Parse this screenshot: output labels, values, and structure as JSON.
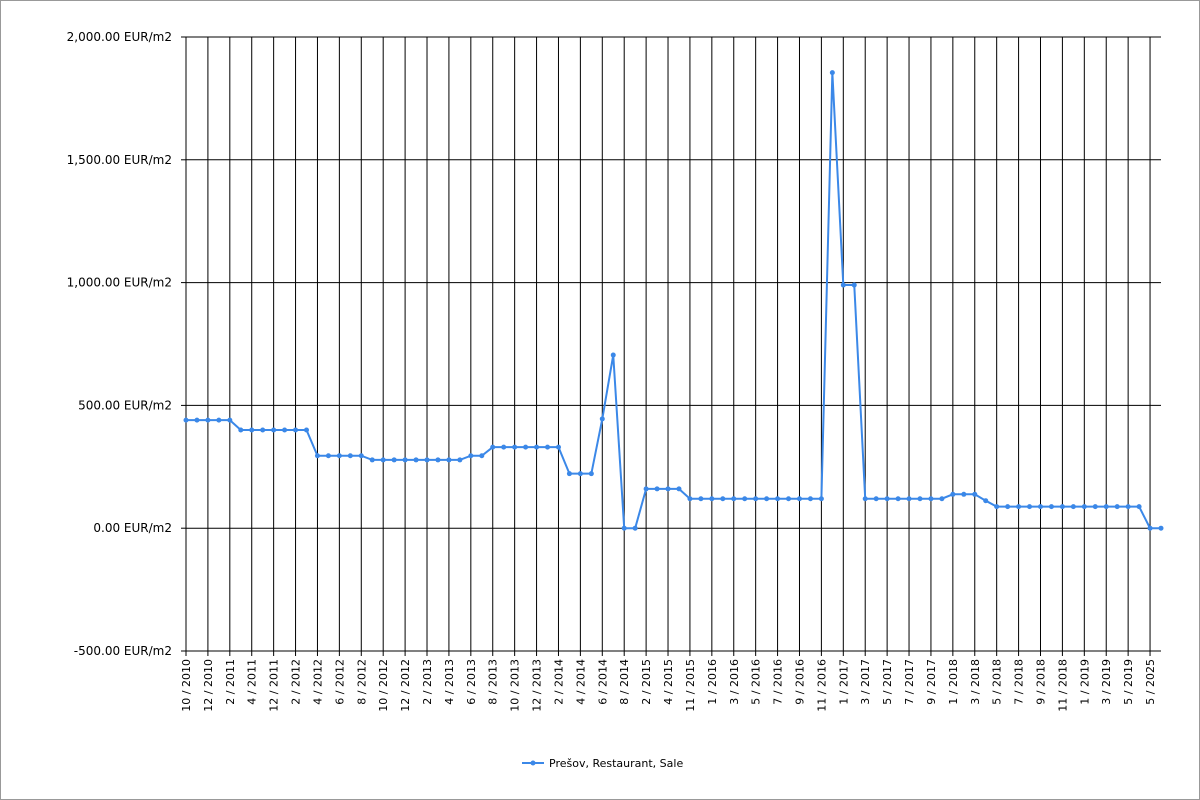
{
  "chart_data": {
    "type": "line",
    "categories": [
      "10 / 2010",
      null,
      "12 / 2010",
      null,
      "2 / 2011",
      null,
      "4 / 2011",
      null,
      "12 / 2011",
      null,
      "2 / 2012",
      null,
      "4 / 2012",
      null,
      "6 / 2012",
      null,
      "8 / 2012",
      null,
      "10 / 2012",
      null,
      "12 / 2012",
      null,
      "2 / 2013",
      null,
      "4 / 2013",
      null,
      "6 / 2013",
      null,
      "8 / 2013",
      null,
      "10 / 2013",
      null,
      "12 / 2013",
      null,
      "2 / 2014",
      null,
      "4 / 2014",
      null,
      "6 / 2014",
      null,
      "8 / 2014",
      null,
      "2 / 2015",
      null,
      "4 / 2015",
      null,
      "11 / 2015",
      null,
      "1 / 2016",
      null,
      "3 / 2016",
      null,
      "5 / 2016",
      null,
      "7 / 2016",
      null,
      "9 / 2016",
      null,
      "11 / 2016",
      null,
      "1 / 2017",
      null,
      "3 / 2017",
      null,
      "5 / 2017",
      null,
      "7 / 2017",
      null,
      "9 / 2017",
      null,
      "1 / 2018",
      null,
      "3 / 2018",
      null,
      "5 / 2018",
      null,
      "7 / 2018",
      null,
      "9 / 2018",
      null,
      "11 / 2018",
      null,
      "1 / 2019",
      null,
      "3 / 2019",
      null,
      "5 / 2019",
      null,
      "5 / 2025",
      null
    ],
    "series": [
      {
        "name": "Prešov, Restaurant, Sale",
        "color": "#3b88e8",
        "values": [
          440,
          440,
          440,
          440,
          440,
          400,
          400,
          400,
          400,
          400,
          400,
          400,
          295,
          295,
          295,
          295,
          295,
          278,
          278,
          278,
          278,
          278,
          278,
          278,
          278,
          278,
          295,
          295,
          330,
          330,
          330,
          330,
          330,
          330,
          330,
          222,
          222,
          222,
          445,
          705,
          0,
          0,
          160,
          160,
          160,
          160,
          120,
          120,
          120,
          120,
          120,
          120,
          120,
          120,
          120,
          120,
          120,
          120,
          120,
          1855,
          990,
          990,
          120,
          120,
          120,
          120,
          120,
          120,
          120,
          120,
          138,
          138,
          138,
          112,
          88,
          88,
          88,
          88,
          88,
          88,
          88,
          88,
          88,
          88,
          88,
          88,
          88,
          88,
          0,
          0
        ]
      }
    ],
    "ylim": [
      -500,
      2000
    ],
    "yticks": [
      {
        "value": -500,
        "label": "-500.00 EUR/m2"
      },
      {
        "value": 0,
        "label": "0.00 EUR/m2"
      },
      {
        "value": 500,
        "label": "500.00 EUR/m2"
      },
      {
        "value": 1000,
        "label": "1,000.00 EUR/m2"
      },
      {
        "value": 1500,
        "label": "1,500.00 EUR/m2"
      },
      {
        "value": 2000,
        "label": "2,000.00 EUR/m2"
      }
    ],
    "grid": true,
    "legend": "bottom"
  }
}
